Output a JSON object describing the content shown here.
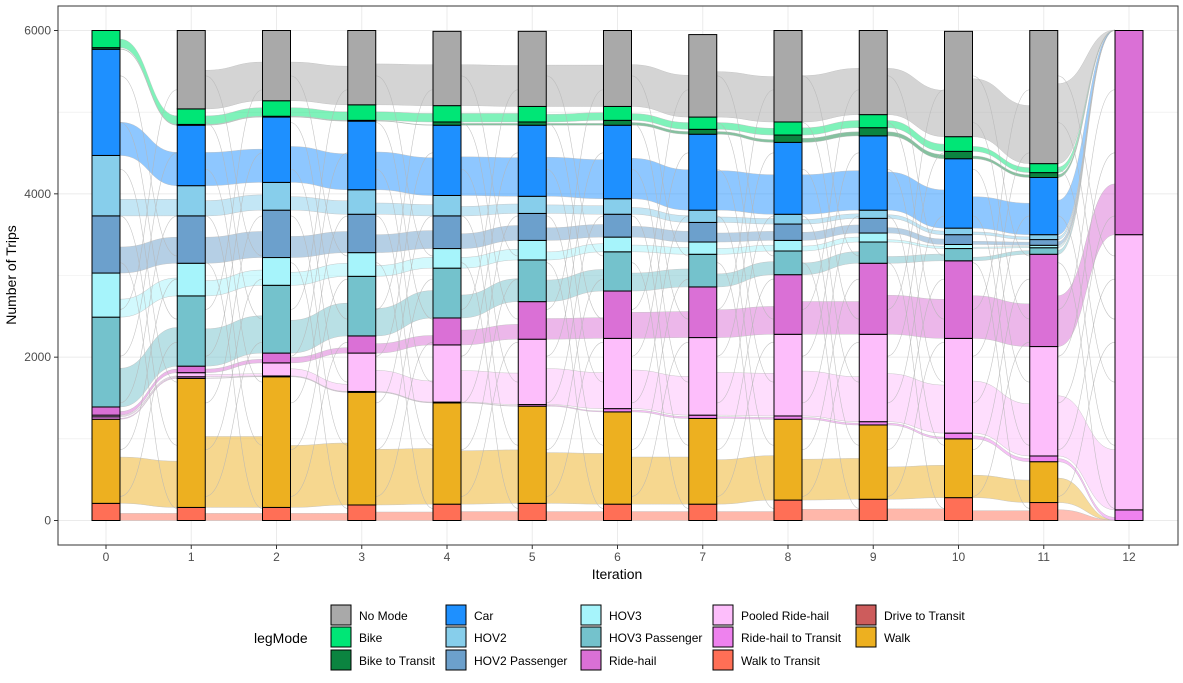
{
  "chart_data": {
    "type": "alluvial",
    "xlabel": "Iteration",
    "ylabel": "Number of Trips",
    "x": [
      "0",
      "1",
      "2",
      "3",
      "4",
      "5",
      "6",
      "7",
      "8",
      "9",
      "10",
      "11",
      "12"
    ],
    "ylim": [
      -300,
      6300
    ],
    "yticks": [
      0,
      2000,
      4000,
      6000
    ],
    "grid": true,
    "legend": {
      "title": "legMode",
      "position": "bottom"
    },
    "modes": [
      {
        "name": "No Mode",
        "color": "#A9A9A9"
      },
      {
        "name": "Bike",
        "color": "#00E676"
      },
      {
        "name": "Bike to Transit",
        "color": "#0B8440"
      },
      {
        "name": "Car",
        "color": "#1E90FF"
      },
      {
        "name": "HOV2",
        "color": "#87CEEB"
      },
      {
        "name": "HOV2 Passenger",
        "color": "#6CA0CC"
      },
      {
        "name": "HOV3",
        "color": "#A6F4FB"
      },
      {
        "name": "HOV3 Passenger",
        "color": "#74C2CC"
      },
      {
        "name": "Ride-hail",
        "color": "#DA70D6"
      },
      {
        "name": "Pooled Ride-hail",
        "color": "#FDBEFB"
      },
      {
        "name": "Ride-hail to Transit",
        "color": "#EE82EE"
      },
      {
        "name": "Walk to Transit",
        "color": "#FF6F56"
      },
      {
        "name": "Drive to Transit",
        "color": "#CD5C5C"
      },
      {
        "name": "Walk",
        "color": "#EDB020"
      }
    ],
    "stack_order": [
      "Walk to Transit",
      "Drive to Transit",
      "Walk",
      "Ride-hail to Transit",
      "Pooled Ride-hail",
      "Ride-hail",
      "HOV3 Passenger",
      "HOV3",
      "HOV2 Passenger",
      "HOV2",
      "Car",
      "Bike to Transit",
      "Bike",
      "No Mode"
    ],
    "stacks": [
      {
        "Walk to Transit": 210,
        "Drive to Transit": 0,
        "Walk": 1030,
        "Ride-hail to Transit": 30,
        "Pooled Ride-hail": 20,
        "Ride-hail": 100,
        "HOV3 Passenger": 1100,
        "HOV3": 540,
        "HOV2 Passenger": 700,
        "HOV2": 740,
        "Car": 1300,
        "Bike to Transit": 20,
        "Bike": 210,
        "No Mode": 0
      },
      {
        "Walk to Transit": 160,
        "Drive to Transit": 0,
        "Walk": 1580,
        "Ride-hail to Transit": 20,
        "Pooled Ride-hail": 50,
        "Ride-hail": 80,
        "HOV3 Passenger": 860,
        "HOV3": 400,
        "HOV2 Passenger": 580,
        "HOV2": 370,
        "Car": 740,
        "Bike to Transit": 10,
        "Bike": 190,
        "No Mode": 960
      },
      {
        "Walk to Transit": 160,
        "Drive to Transit": 0,
        "Walk": 1600,
        "Ride-hail to Transit": 10,
        "Pooled Ride-hail": 160,
        "Ride-hail": 120,
        "HOV3 Passenger": 830,
        "HOV3": 340,
        "HOV2 Passenger": 580,
        "HOV2": 340,
        "Car": 800,
        "Bike to Transit": 10,
        "Bike": 190,
        "No Mode": 860
      },
      {
        "Walk to Transit": 190,
        "Drive to Transit": 0,
        "Walk": 1380,
        "Ride-hail to Transit": 10,
        "Pooled Ride-hail": 470,
        "Ride-hail": 210,
        "HOV3 Passenger": 730,
        "HOV3": 290,
        "HOV2 Passenger": 470,
        "HOV2": 300,
        "Car": 840,
        "Bike to Transit": 10,
        "Bike": 190,
        "No Mode": 910
      },
      {
        "Walk to Transit": 200,
        "Drive to Transit": 0,
        "Walk": 1240,
        "Ride-hail to Transit": 10,
        "Pooled Ride-hail": 700,
        "Ride-hail": 330,
        "HOV3 Passenger": 610,
        "HOV3": 240,
        "HOV2 Passenger": 400,
        "HOV2": 250,
        "Car": 860,
        "Bike to Transit": 40,
        "Bike": 200,
        "No Mode": 910
      },
      {
        "Walk to Transit": 210,
        "Drive to Transit": 0,
        "Walk": 1190,
        "Ride-hail to Transit": 20,
        "Pooled Ride-hail": 800,
        "Ride-hail": 460,
        "HOV3 Passenger": 510,
        "HOV3": 240,
        "HOV2 Passenger": 330,
        "HOV2": 210,
        "Car": 870,
        "Bike to Transit": 40,
        "Bike": 190,
        "No Mode": 920
      },
      {
        "Walk to Transit": 200,
        "Drive to Transit": 0,
        "Walk": 1130,
        "Ride-hail to Transit": 40,
        "Pooled Ride-hail": 860,
        "Ride-hail": 580,
        "HOV3 Passenger": 480,
        "HOV3": 180,
        "HOV2 Passenger": 280,
        "HOV2": 190,
        "Car": 900,
        "Bike to Transit": 60,
        "Bike": 170,
        "No Mode": 930
      },
      {
        "Walk to Transit": 200,
        "Drive to Transit": 0,
        "Walk": 1050,
        "Ride-hail to Transit": 40,
        "Pooled Ride-hail": 950,
        "Ride-hail": 620,
        "HOV3 Passenger": 400,
        "HOV3": 150,
        "HOV2 Passenger": 240,
        "HOV2": 150,
        "Car": 930,
        "Bike to Transit": 60,
        "Bike": 150,
        "No Mode": 1010
      },
      {
        "Walk to Transit": 250,
        "Drive to Transit": 0,
        "Walk": 990,
        "Ride-hail to Transit": 40,
        "Pooled Ride-hail": 1000,
        "Ride-hail": 730,
        "HOV3 Passenger": 290,
        "HOV3": 130,
        "HOV2 Passenger": 200,
        "HOV2": 120,
        "Car": 880,
        "Bike to Transit": 90,
        "Bike": 160,
        "No Mode": 1120
      },
      {
        "Walk to Transit": 260,
        "Drive to Transit": 0,
        "Walk": 910,
        "Ride-hail to Transit": 40,
        "Pooled Ride-hail": 1070,
        "Ride-hail": 870,
        "HOV3 Passenger": 260,
        "HOV3": 110,
        "HOV2 Passenger": 180,
        "HOV2": 100,
        "Car": 910,
        "Bike to Transit": 100,
        "Bike": 160,
        "No Mode": 1030
      },
      {
        "Walk to Transit": 280,
        "Drive to Transit": 0,
        "Walk": 720,
        "Ride-hail to Transit": 70,
        "Pooled Ride-hail": 1160,
        "Ride-hail": 950,
        "HOV3 Passenger": 150,
        "HOV3": 50,
        "HOV2 Passenger": 120,
        "HOV2": 80,
        "Car": 850,
        "Bike to Transit": 90,
        "Bike": 180,
        "No Mode": 1290
      },
      {
        "Walk to Transit": 220,
        "Drive to Transit": 0,
        "Walk": 500,
        "Ride-hail to Transit": 70,
        "Pooled Ride-hail": 1340,
        "Ride-hail": 1130,
        "HOV3 Passenger": 80,
        "HOV3": 30,
        "HOV2 Passenger": 70,
        "HOV2": 60,
        "Car": 700,
        "Bike to Transit": 60,
        "Bike": 110,
        "No Mode": 1630
      },
      {
        "Walk to Transit": 0,
        "Drive to Transit": 0,
        "Walk": 0,
        "Ride-hail to Transit": 130,
        "Pooled Ride-hail": 3370,
        "Ride-hail": 2500,
        "HOV3 Passenger": 0,
        "HOV3": 0,
        "HOV2 Passenger": 0,
        "HOV2": 0,
        "Car": 0,
        "Bike to Transit": 0,
        "Bike": 0,
        "No Mode": 0
      }
    ]
  }
}
